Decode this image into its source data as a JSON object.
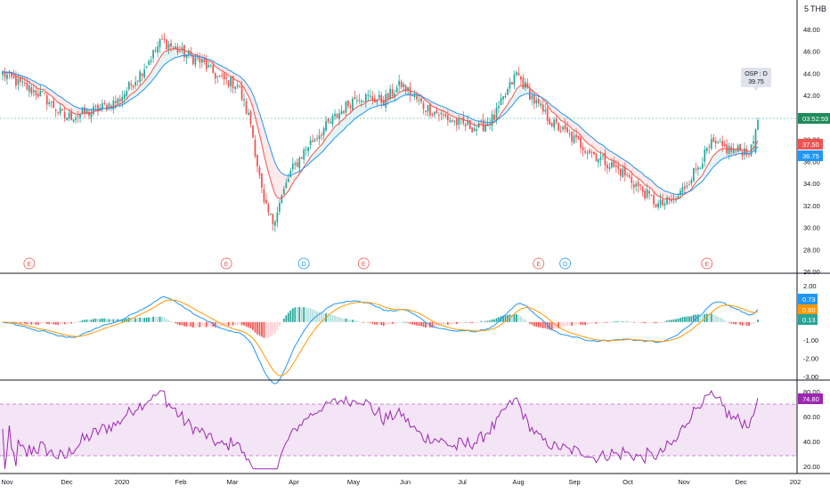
{
  "currency_label": "THB",
  "currency_prefix": "5",
  "countdown": "03:52:59",
  "osp_label": "OSP : D",
  "osp_value": "39.75",
  "badges": {
    "price_a": "37.50",
    "price_b": "36.75",
    "macd_a": "0.73",
    "macd_b": "0.60",
    "macd_c": "0.13",
    "rsi": "74.80"
  },
  "colors": {
    "up": "#26a69a",
    "up_main": "#1e8c5a",
    "down": "#ef5350",
    "blue": "#2196f3",
    "orange": "#ff9800",
    "purple": "#9c27b0",
    "rsi_band": "#f3e5f5",
    "axis_text": "#131722",
    "grid_sep": "#000000"
  },
  "event_markers": [
    {
      "letter": "E",
      "date_index": 12
    },
    {
      "letter": "E",
      "date_index": 101
    },
    {
      "letter": "D",
      "date_index": 136
    },
    {
      "letter": "E",
      "date_index": 163
    },
    {
      "letter": "E",
      "date_index": 242
    },
    {
      "letter": "D",
      "date_index": 254
    },
    {
      "letter": "E",
      "date_index": 318
    }
  ],
  "chart_data": [
    {
      "type": "candlestick",
      "title": "",
      "ylim": [
        26,
        50
      ],
      "y_ticks": [
        "48.00",
        "46.00",
        "44.00",
        "42.00",
        "38.00",
        "36.00",
        "34.00",
        "32.00",
        "30.00",
        "28.00",
        "26.00"
      ],
      "x_ticks": [
        "Nov",
        "Dec",
        "2020",
        "Feb",
        "Mar",
        "Apr",
        "May",
        "Jun",
        "Jul",
        "Aug",
        "Sep",
        "Oct",
        "Nov",
        "Dec",
        "202"
      ],
      "close_anchors": [
        [
          0,
          44.0
        ],
        [
          8,
          43.0
        ],
        [
          18,
          42.0
        ],
        [
          28,
          40.0
        ],
        [
          40,
          40.5
        ],
        [
          52,
          41.5
        ],
        [
          62,
          44.0
        ],
        [
          72,
          47.0
        ],
        [
          80,
          46.0
        ],
        [
          90,
          45.0
        ],
        [
          98,
          43.5
        ],
        [
          106,
          43.0
        ],
        [
          112,
          39.5
        ],
        [
          118,
          32.0
        ],
        [
          122,
          30.5
        ],
        [
          130,
          35.0
        ],
        [
          138,
          37.5
        ],
        [
          150,
          40.0
        ],
        [
          160,
          42.0
        ],
        [
          172,
          41.5
        ],
        [
          180,
          43.0
        ],
        [
          190,
          41.0
        ],
        [
          205,
          39.5
        ],
        [
          215,
          39.0
        ],
        [
          222,
          40.0
        ],
        [
          232,
          44.0
        ],
        [
          240,
          41.5
        ],
        [
          248,
          39.5
        ],
        [
          258,
          38.0
        ],
        [
          268,
          36.5
        ],
        [
          280,
          35.0
        ],
        [
          296,
          32.0
        ],
        [
          304,
          32.5
        ],
        [
          312,
          35.0
        ],
        [
          320,
          37.5
        ],
        [
          330,
          37.0
        ],
        [
          338,
          37.0
        ],
        [
          341,
          39.75
        ]
      ],
      "moving_averages": [
        {
          "color": "red",
          "period": 10
        },
        {
          "color": "blue",
          "period": 20
        }
      ]
    },
    {
      "type": "macd",
      "ylim": [
        -3,
        2
      ],
      "y_ticks": [
        "2.00",
        "1.00",
        "-1.00",
        "-2.00",
        "-3.00"
      ],
      "series": [
        {
          "name": "",
          "color": "blue",
          "last": 0.73
        },
        {
          "name": "",
          "color": "orange",
          "last": 0.6
        },
        {
          "name": "",
          "type": "histogram",
          "last": 0.13
        }
      ]
    },
    {
      "type": "rsi",
      "ylim": [
        15,
        82
      ],
      "y_ticks": [
        "80.00",
        "60.00",
        "40.00",
        "20.00"
      ],
      "band": [
        30,
        70
      ],
      "last": 74.8
    }
  ]
}
